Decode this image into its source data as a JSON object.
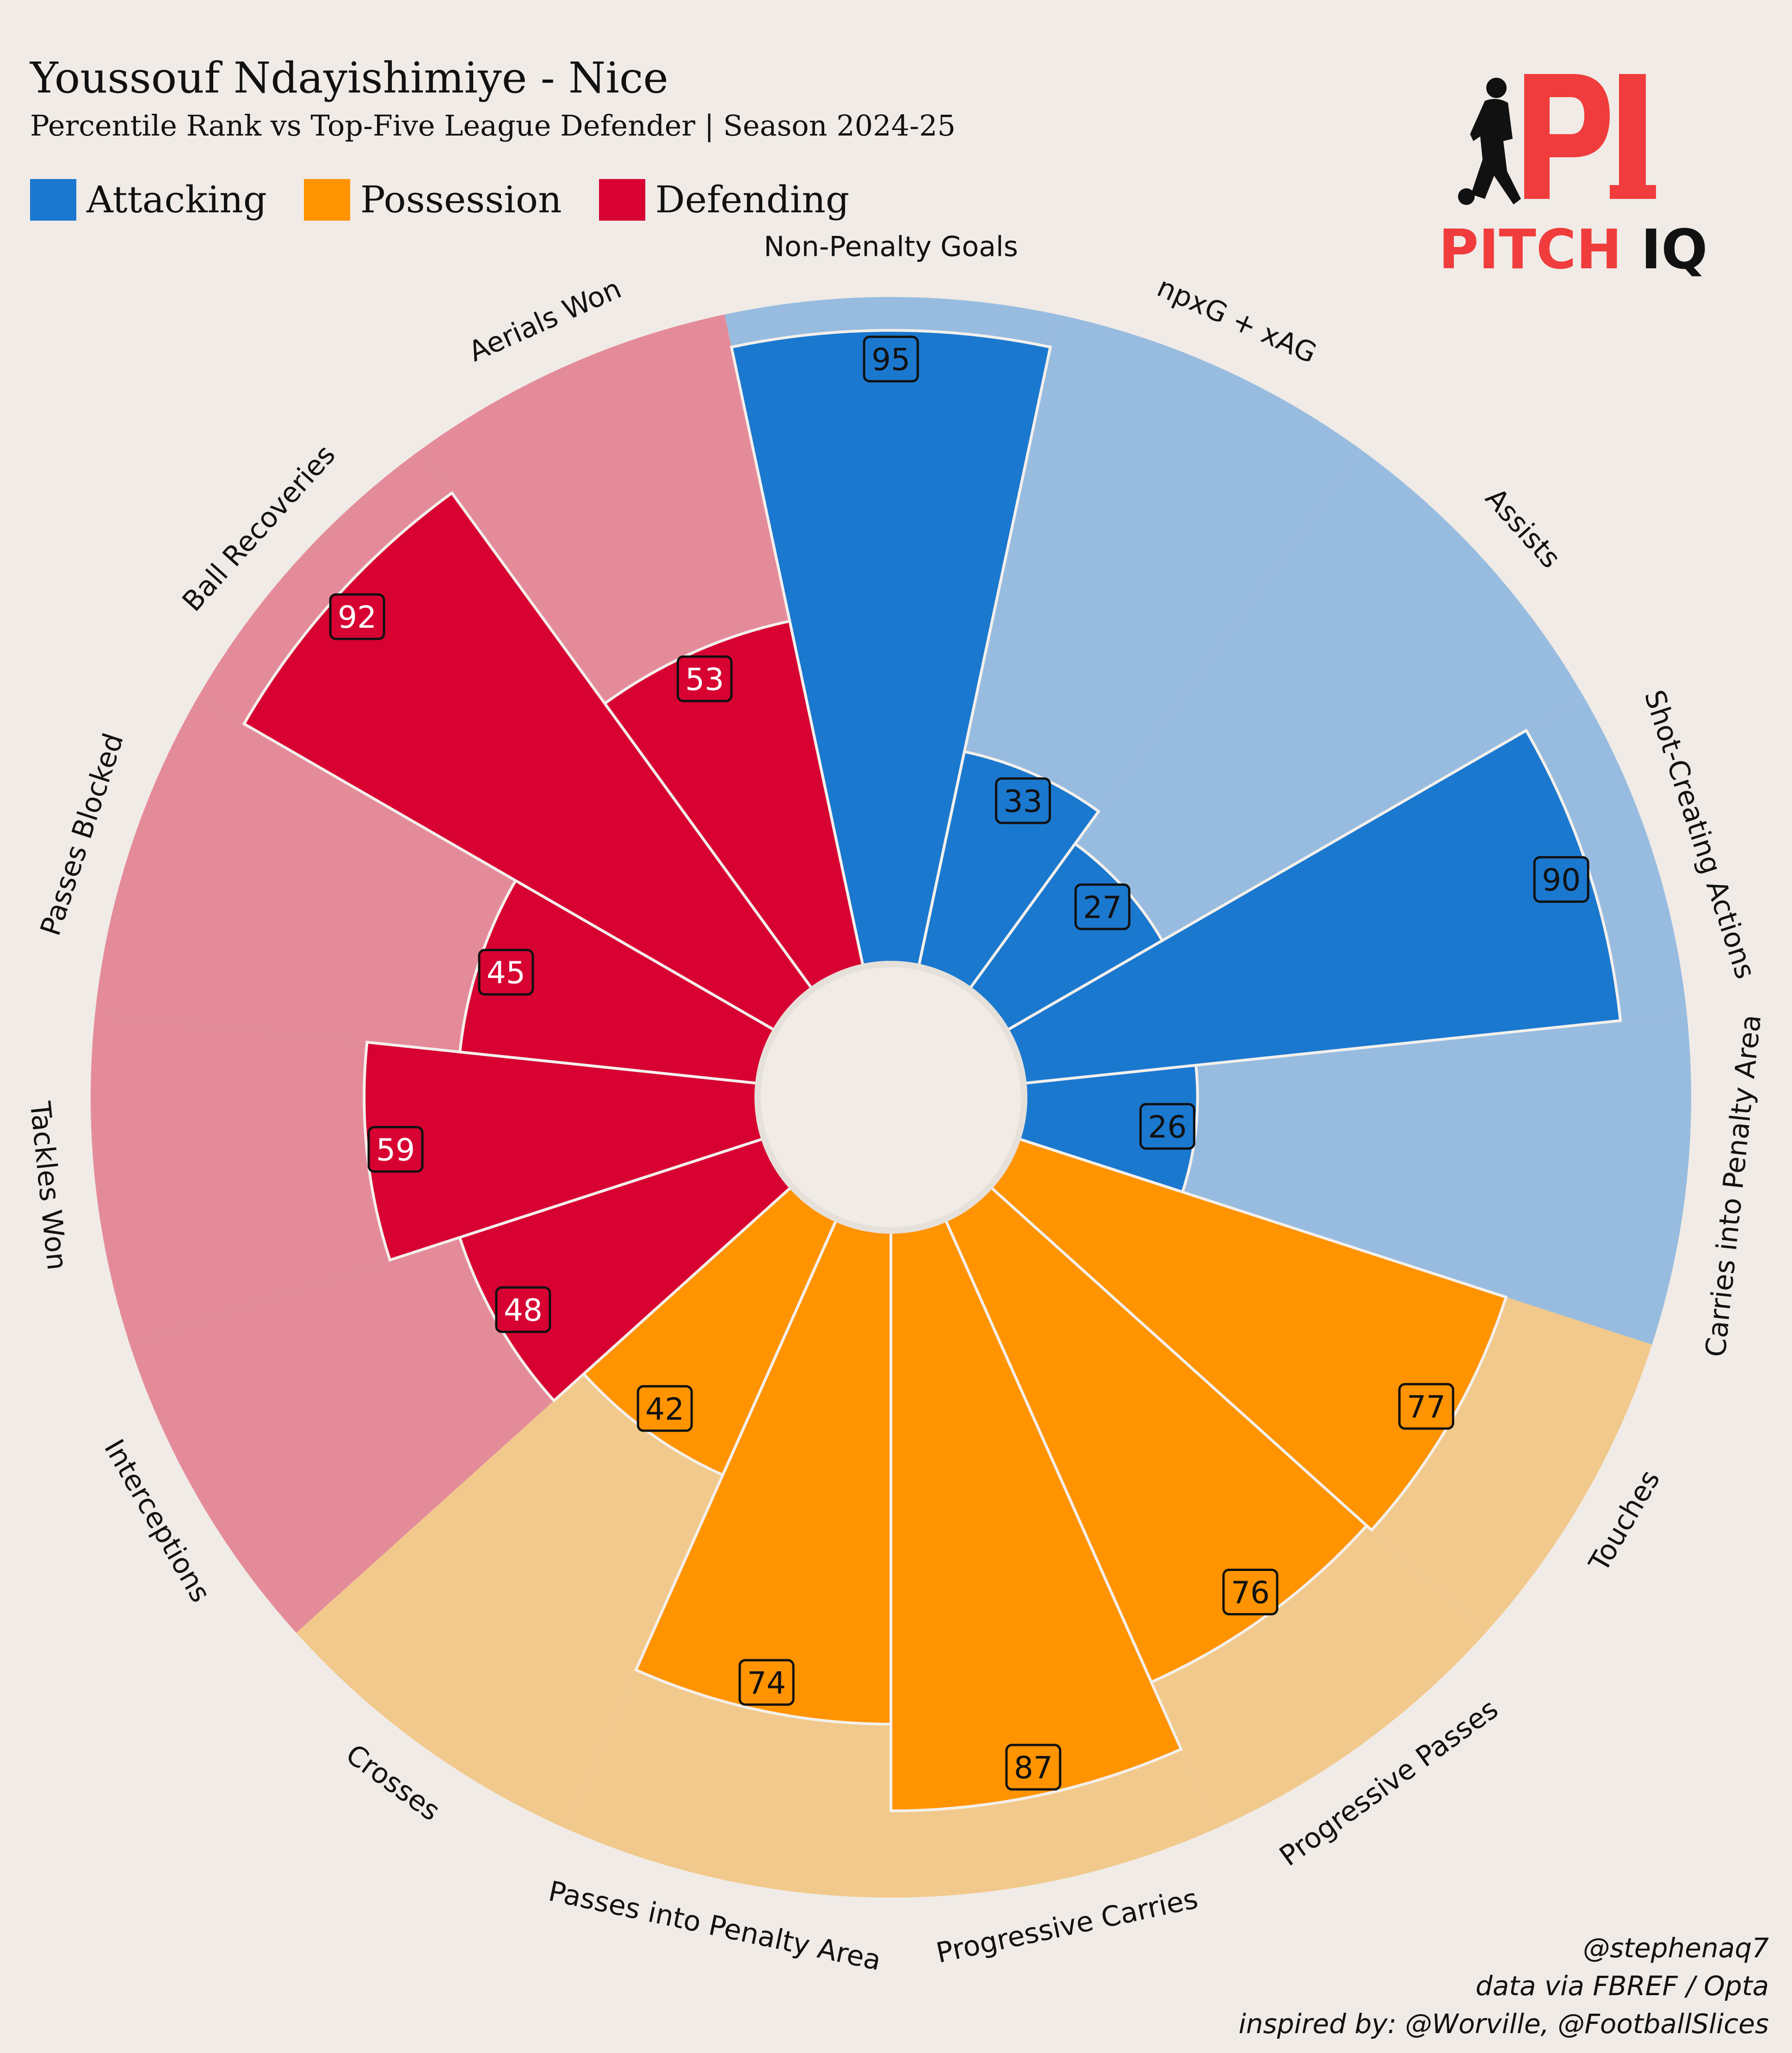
{
  "title": "Youssouf Ndayishimiye - Nice",
  "subtitle": "Percentile Rank vs Top-Five League Defender | Season 2024-25",
  "legend": [
    {
      "label": "Attacking",
      "color": "#1B78CF"
    },
    {
      "label": "Possession",
      "color": "#FF9300"
    },
    {
      "label": "Defending",
      "color": "#D70232"
    }
  ],
  "logo": {
    "mark": "PI",
    "word1": "PITCH",
    "word2": "IQ",
    "icon": "footballer-silhouette-icon"
  },
  "footer": [
    "@stephenaq7",
    "data via FBREF / Opta",
    "inspired by: @Worville, @FootballSlices"
  ],
  "chart_data": {
    "type": "pie",
    "subtype": "polar-bar",
    "range": [
      0,
      100
    ],
    "categories": [
      "Non-Penalty Goals",
      "npxG + xAG",
      "Assists",
      "Shot-Creating Actions",
      "Carries into Penalty Area",
      "Touches",
      "Progressive Passes",
      "Progressive Carries",
      "Passes into Penalty Area",
      "Crosses",
      "Interceptions",
      "Tackles Won",
      "Passes Blocked",
      "Ball Recoveries",
      "Aerials Won"
    ],
    "values": [
      95,
      33,
      27,
      90,
      26,
      77,
      76,
      87,
      74,
      42,
      48,
      59,
      45,
      92,
      53
    ],
    "groups": [
      "Attacking",
      "Attacking",
      "Attacking",
      "Attacking",
      "Attacking",
      "Possession",
      "Possession",
      "Possession",
      "Possession",
      "Possession",
      "Defending",
      "Defending",
      "Defending",
      "Defending",
      "Defending"
    ],
    "colors": {
      "Attacking": {
        "bar": "#1B78CF",
        "background": "#98BCDF",
        "text": "#111111"
      },
      "Possession": {
        "bar": "#FF9300",
        "background": "#F2C98C",
        "text": "#111111"
      },
      "Defending": {
        "bar": "#D70232",
        "background": "#E48B9A",
        "text": "#FFFFFF"
      }
    }
  }
}
